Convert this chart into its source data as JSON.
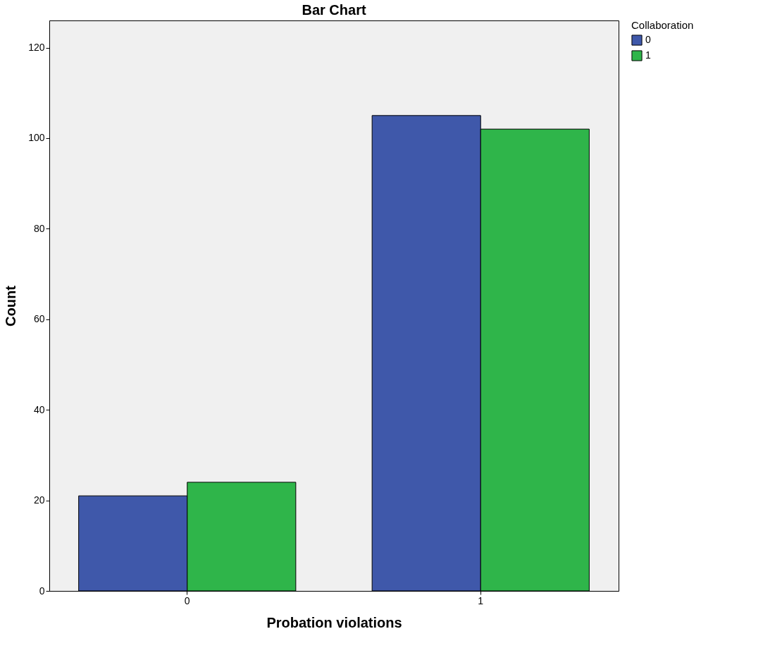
{
  "chart_data": {
    "type": "bar",
    "title": "Bar Chart",
    "xlabel": "Probation violations",
    "ylabel": "Count",
    "legend_title": "Collaboration",
    "categories": [
      "0",
      "1"
    ],
    "series": [
      {
        "name": "0",
        "color": "#3f58aa",
        "values": [
          21,
          105
        ]
      },
      {
        "name": "1",
        "color": "#2fb54a",
        "values": [
          24,
          102
        ]
      }
    ],
    "ylim": [
      0,
      126
    ],
    "yticks": [
      0,
      20,
      40,
      60,
      80,
      100,
      120
    ],
    "grid": false,
    "legend": "top right"
  }
}
